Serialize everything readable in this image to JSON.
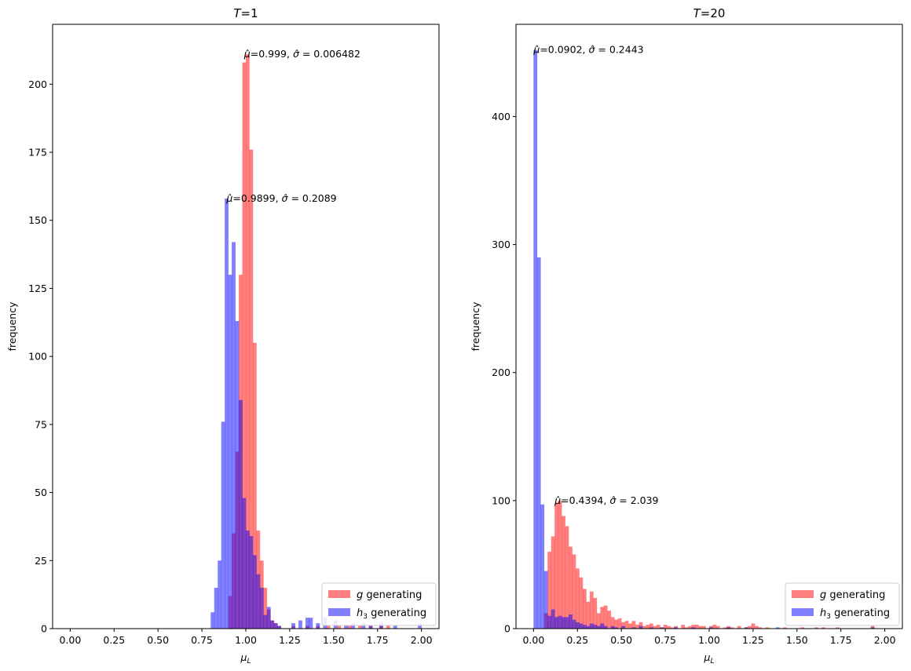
{
  "chart_data": [
    {
      "type": "histogram",
      "title": "T=1",
      "title_parts": {
        "var": "T",
        "rest": "=1"
      },
      "xlabel": {
        "base": "μ",
        "sub": "L"
      },
      "ylabel": "frequency",
      "xlim": [
        -0.1,
        2.1
      ],
      "ylim": [
        0,
        222
      ],
      "xticks": [
        0.0,
        0.25,
        0.5,
        0.75,
        1.0,
        1.25,
        1.5,
        1.75,
        2.0
      ],
      "xtick_labels": [
        "0.00",
        "0.25",
        "0.50",
        "0.75",
        "1.00",
        "1.25",
        "1.50",
        "1.75",
        "2.00"
      ],
      "yticks": [
        0,
        25,
        50,
        75,
        100,
        125,
        150,
        175,
        200
      ],
      "ytick_labels": [
        "0",
        "25",
        "50",
        "75",
        "100",
        "125",
        "150",
        "175",
        "200"
      ],
      "grid": false,
      "legend_position": "bottom-right",
      "bin_width": 0.02,
      "series": [
        {
          "name": "g generating",
          "name_parts": {
            "var": "g",
            "sub": "",
            "rest": " generating"
          },
          "color": "#ff0000",
          "alpha": 0.5,
          "bins": [
            [
              0.9,
              12
            ],
            [
              0.92,
              35
            ],
            [
              0.94,
              65
            ],
            [
              0.96,
              130
            ],
            [
              0.98,
              208
            ],
            [
              1.0,
              211
            ],
            [
              1.02,
              176
            ],
            [
              1.04,
              105
            ],
            [
              1.06,
              36
            ],
            [
              1.08,
              25
            ],
            [
              1.1,
              15
            ],
            [
              1.12,
              7
            ],
            [
              1.14,
              3
            ],
            [
              1.16,
              2
            ],
            [
              1.18,
              1
            ],
            [
              1.26,
              1
            ],
            [
              1.34,
              1
            ],
            [
              1.4,
              1
            ],
            [
              1.46,
              1
            ],
            [
              1.52,
              1
            ],
            [
              1.58,
              1
            ],
            [
              1.64,
              1
            ],
            [
              1.7,
              1
            ],
            [
              1.76,
              1
            ],
            [
              1.8,
              1
            ]
          ]
        },
        {
          "name": "h3 generating",
          "name_parts": {
            "var": "h",
            "sub": "3",
            "rest": " generating"
          },
          "color": "#0000ff",
          "alpha": 0.5,
          "bins": [
            [
              0.8,
              6
            ],
            [
              0.82,
              15
            ],
            [
              0.84,
              25
            ],
            [
              0.86,
              76
            ],
            [
              0.88,
              158
            ],
            [
              0.9,
              130
            ],
            [
              0.92,
              142
            ],
            [
              0.94,
              113
            ],
            [
              0.96,
              84
            ],
            [
              0.98,
              48
            ],
            [
              1.0,
              36
            ],
            [
              1.02,
              34
            ],
            [
              1.04,
              27
            ],
            [
              1.06,
              20
            ],
            [
              1.08,
              15
            ],
            [
              1.1,
              5
            ],
            [
              1.12,
              8
            ],
            [
              1.14,
              3
            ],
            [
              1.16,
              2
            ],
            [
              1.18,
              1
            ],
            [
              1.26,
              2
            ],
            [
              1.3,
              3
            ],
            [
              1.34,
              4
            ],
            [
              1.36,
              4
            ],
            [
              1.4,
              2
            ],
            [
              1.44,
              4
            ],
            [
              1.5,
              3
            ],
            [
              1.56,
              1
            ],
            [
              1.6,
              2
            ],
            [
              1.66,
              2
            ],
            [
              1.7,
              1
            ],
            [
              1.76,
              2
            ],
            [
              1.84,
              1
            ],
            [
              1.98,
              2
            ]
          ]
        }
      ],
      "annotations": [
        {
          "text": "=0.999, ",
          "mu": "0.999",
          "sigma": "0.006482",
          "x": 0.99,
          "y": 211
        },
        {
          "text": "=0.9899, ",
          "mu": "0.9899",
          "sigma": "0.2089",
          "x": 0.89,
          "y": 158
        }
      ]
    },
    {
      "type": "histogram",
      "title": "T=20",
      "title_parts": {
        "var": "T",
        "rest": "=20"
      },
      "xlabel": {
        "base": "μ",
        "sub": "L"
      },
      "ylabel": "frequency",
      "xlim": [
        -0.1,
        2.1
      ],
      "ylim": [
        0,
        472
      ],
      "xticks": [
        0.0,
        0.25,
        0.5,
        0.75,
        1.0,
        1.25,
        1.5,
        1.75,
        2.0
      ],
      "xtick_labels": [
        "0.00",
        "0.25",
        "0.50",
        "0.75",
        "1.00",
        "1.25",
        "1.50",
        "1.75",
        "2.00"
      ],
      "yticks": [
        0,
        100,
        200,
        300,
        400
      ],
      "ytick_labels": [
        "0",
        "100",
        "200",
        "300",
        "400"
      ],
      "grid": false,
      "legend_position": "bottom-right",
      "bin_width": 0.02,
      "series": [
        {
          "name": "g generating",
          "name_parts": {
            "var": "g",
            "sub": "",
            "rest": " generating"
          },
          "color": "#ff0000",
          "alpha": 0.5,
          "bins": [
            [
              0.06,
              12
            ],
            [
              0.08,
              60
            ],
            [
              0.1,
              72
            ],
            [
              0.12,
              98
            ],
            [
              0.14,
              100
            ],
            [
              0.16,
              88
            ],
            [
              0.18,
              80
            ],
            [
              0.2,
              64
            ],
            [
              0.22,
              58
            ],
            [
              0.24,
              47
            ],
            [
              0.26,
              40
            ],
            [
              0.28,
              31
            ],
            [
              0.3,
              21
            ],
            [
              0.32,
              29
            ],
            [
              0.34,
              24
            ],
            [
              0.36,
              12
            ],
            [
              0.38,
              17
            ],
            [
              0.4,
              18
            ],
            [
              0.42,
              14
            ],
            [
              0.44,
              9
            ],
            [
              0.46,
              7
            ],
            [
              0.48,
              8
            ],
            [
              0.5,
              5
            ],
            [
              0.52,
              6
            ],
            [
              0.54,
              4
            ],
            [
              0.56,
              6
            ],
            [
              0.58,
              3
            ],
            [
              0.6,
              5
            ],
            [
              0.62,
              2
            ],
            [
              0.64,
              3
            ],
            [
              0.66,
              4
            ],
            [
              0.68,
              2
            ],
            [
              0.7,
              3
            ],
            [
              0.72,
              1
            ],
            [
              0.74,
              3
            ],
            [
              0.76,
              2
            ],
            [
              0.78,
              1
            ],
            [
              0.8,
              2
            ],
            [
              0.84,
              3
            ],
            [
              0.86,
              1
            ],
            [
              0.88,
              2
            ],
            [
              0.9,
              3
            ],
            [
              0.92,
              3
            ],
            [
              0.94,
              2
            ],
            [
              0.96,
              2
            ],
            [
              1.0,
              2
            ],
            [
              1.02,
              3
            ],
            [
              1.04,
              2
            ],
            [
              1.08,
              1
            ],
            [
              1.1,
              2
            ],
            [
              1.12,
              1
            ],
            [
              1.16,
              2
            ],
            [
              1.2,
              1
            ],
            [
              1.22,
              2
            ],
            [
              1.24,
              4
            ],
            [
              1.26,
              2
            ],
            [
              1.28,
              1
            ],
            [
              1.32,
              1
            ],
            [
              1.42,
              1
            ],
            [
              1.52,
              1
            ],
            [
              1.6,
              1
            ],
            [
              1.64,
              1
            ],
            [
              1.72,
              1
            ],
            [
              1.92,
              2
            ]
          ]
        },
        {
          "name": "h3 generating",
          "name_parts": {
            "var": "h",
            "sub": "3",
            "rest": " generating"
          },
          "color": "#0000ff",
          "alpha": 0.5,
          "bins": [
            [
              0.0,
              452
            ],
            [
              0.02,
              290
            ],
            [
              0.04,
              97
            ],
            [
              0.06,
              45
            ],
            [
              0.08,
              10
            ],
            [
              0.1,
              15
            ],
            [
              0.12,
              9
            ],
            [
              0.14,
              10
            ],
            [
              0.16,
              9
            ],
            [
              0.18,
              9
            ],
            [
              0.2,
              11
            ],
            [
              0.22,
              7
            ],
            [
              0.24,
              5
            ],
            [
              0.26,
              4
            ],
            [
              0.28,
              3
            ],
            [
              0.3,
              2
            ],
            [
              0.32,
              4
            ],
            [
              0.34,
              3
            ],
            [
              0.36,
              2
            ],
            [
              0.38,
              4
            ],
            [
              0.4,
              2
            ],
            [
              0.44,
              2
            ],
            [
              0.46,
              1
            ],
            [
              0.5,
              2
            ],
            [
              0.56,
              1
            ],
            [
              0.6,
              2
            ],
            [
              0.66,
              1
            ],
            [
              0.72,
              1
            ],
            [
              0.8,
              1
            ],
            [
              0.9,
              1
            ],
            [
              1.0,
              1
            ],
            [
              1.1,
              1
            ],
            [
              1.2,
              1
            ],
            [
              1.38,
              1
            ],
            [
              1.92,
              1
            ]
          ]
        }
      ],
      "annotations": [
        {
          "text": "=0.0902, ",
          "mu": "0.0902",
          "sigma": "0.2443",
          "x": 0.0,
          "y": 452
        },
        {
          "text": "=0.4394, ",
          "mu": "0.4394",
          "sigma": "2.039",
          "x": 0.12,
          "y": 100
        }
      ]
    }
  ]
}
